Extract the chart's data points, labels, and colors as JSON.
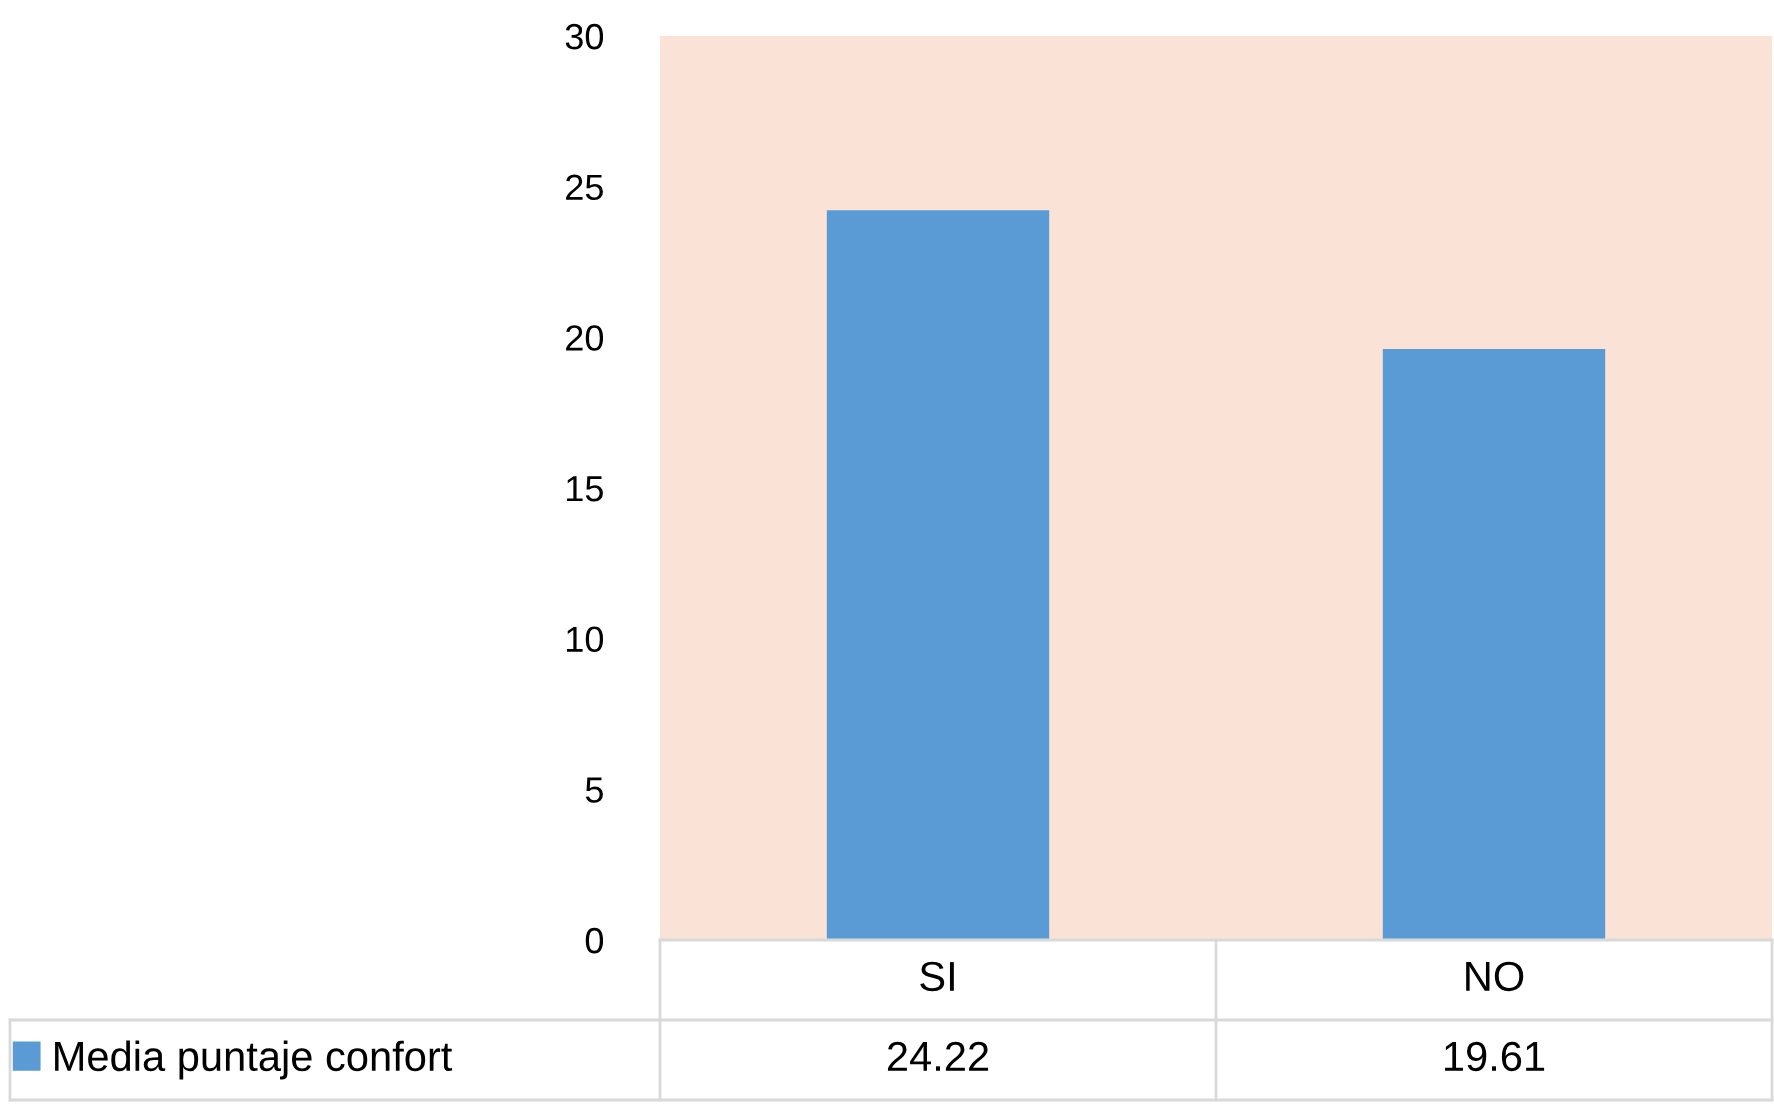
{
  "chart_data": {
    "type": "bar",
    "categories": [
      "SI",
      "NO"
    ],
    "series": [
      {
        "name": "Media puntaje confort",
        "color": "#5b9bd5",
        "values": [
          24.22,
          19.61
        ]
      }
    ],
    "ylim": [
      0,
      30
    ],
    "yticks": [
      0,
      5,
      10,
      15,
      20,
      25,
      30
    ],
    "data_labels": true,
    "legend": "bottom",
    "grid": false
  }
}
